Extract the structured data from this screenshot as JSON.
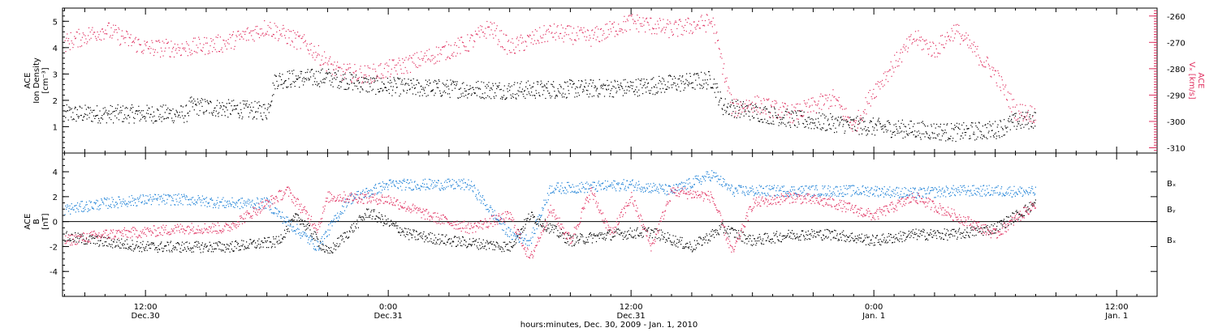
{
  "colors": {
    "black": "#000000",
    "blue": "#1a7fd6",
    "red": "#e03060"
  },
  "x_axis": {
    "title": "hours:minutes, Dec. 30, 2009 - Jan. 1, 2010",
    "ticks": [
      {
        "t": 12,
        "top": "12:00",
        "bottom": "Dec.30"
      },
      {
        "t": 24,
        "top": "0:00",
        "bottom": "Dec.31"
      },
      {
        "t": 36,
        "top": "12:00",
        "bottom": "Dec.31"
      },
      {
        "t": 48,
        "top": "0:00",
        "bottom": "Jan. 1"
      },
      {
        "t": 60,
        "top": "12:00",
        "bottom": "Jan. 1"
      }
    ],
    "range": [
      7.9,
      62.0
    ],
    "unit": "hours since Dec. 30 00:00"
  },
  "chart_data": [
    {
      "type": "scatter",
      "panel": "density-velocity",
      "ylabel": [
        "ACE",
        "Ion Density",
        "[cm⁻³]"
      ],
      "ylim": [
        0,
        5.5
      ],
      "yticks": [
        1,
        2,
        3,
        4,
        5
      ],
      "ylabel_right": [
        "ACE",
        "Vₓ [km/s]"
      ],
      "ylim_right": [
        -312,
        -257
      ],
      "yticks_right": [
        -260,
        -270,
        -280,
        -290,
        -300,
        -310
      ],
      "series": [
        {
          "axis": "left",
          "color": "black",
          "t": [
            8,
            14,
            14.2,
            18,
            18.4,
            21,
            23,
            25,
            30,
            36,
            40,
            40.5,
            44,
            48,
            52,
            54,
            55,
            56
          ],
          "values": [
            1.5,
            1.5,
            1.8,
            1.6,
            2.8,
            2.9,
            2.6,
            2.5,
            2.4,
            2.5,
            2.8,
            1.8,
            1.3,
            1.0,
            0.8,
            0.9,
            1.2,
            1.3
          ]
        },
        {
          "axis": "right",
          "color": "red",
          "t": [
            8,
            10,
            12,
            14,
            16,
            18,
            20,
            21.5,
            23,
            25,
            28,
            29,
            30,
            32,
            34,
            36,
            38,
            40,
            41,
            42,
            44,
            46,
            47,
            48,
            50,
            51,
            52,
            54,
            55,
            56
          ],
          "values": [
            -270,
            -265,
            -272,
            -272,
            -270,
            -264,
            -271,
            -281,
            -282,
            -278,
            -270,
            -264,
            -272,
            -266,
            -268,
            -262,
            -265,
            -262,
            -295,
            -293,
            -297,
            -291,
            -302,
            -288,
            -268,
            -273,
            -265,
            -282,
            -296,
            -297
          ]
        }
      ]
    },
    {
      "type": "scatter",
      "panel": "magnetic-field",
      "ylabel": [
        "ACE",
        "B",
        "[nT]"
      ],
      "ylim": [
        -6,
        5.5
      ],
      "yticks": [
        -4,
        -2,
        0,
        2,
        4
      ],
      "zero_line": true,
      "series": [
        {
          "name": "Bₓ",
          "color": "black",
          "t": [
            8,
            12,
            16,
            18.5,
            19.5,
            21,
            23,
            25,
            27,
            30,
            31,
            33,
            35,
            37,
            39,
            40.5,
            42,
            44,
            46,
            48,
            50,
            52,
            54,
            56
          ],
          "values": [
            -1.2,
            -2.0,
            -2.0,
            -1.6,
            0.5,
            -2.5,
            0.8,
            -1.0,
            -1.5,
            -2.0,
            0.5,
            -1.5,
            -1.0,
            -0.8,
            -2.0,
            -0.5,
            -1.5,
            -1.0,
            -1.0,
            -1.5,
            -1.0,
            -1.0,
            -0.5,
            1.5
          ]
        },
        {
          "name": "Bᵧ",
          "color": "blue",
          "t": [
            8,
            10,
            12,
            14,
            16,
            18,
            19,
            20.5,
            22,
            24,
            26,
            28,
            30,
            31,
            32,
            34,
            36,
            38,
            40,
            41,
            42,
            44,
            46,
            48,
            50,
            52,
            54,
            56
          ],
          "values": [
            1.0,
            1.5,
            1.8,
            1.8,
            1.5,
            1.5,
            0.0,
            -2.0,
            1.8,
            3.0,
            3.0,
            3.0,
            -1.0,
            -1.5,
            2.7,
            2.8,
            3.0,
            2.5,
            3.8,
            2.5,
            2.5,
            2.5,
            2.5,
            2.5,
            2.3,
            2.5,
            2.5,
            2.4
          ]
        },
        {
          "name": "Bₓ",
          "color": "red",
          "t": [
            8,
            10,
            12,
            14,
            16,
            17.5,
            19,
            20.5,
            21,
            22,
            24,
            26,
            28,
            30,
            31,
            32,
            33,
            34,
            35,
            36,
            37,
            38,
            40,
            41,
            42,
            44,
            46,
            48,
            50,
            52,
            54,
            56
          ],
          "values": [
            -1.5,
            -1.0,
            -0.8,
            -0.5,
            -0.5,
            1.0,
            2.5,
            -0.5,
            2.0,
            2.0,
            1.8,
            0.5,
            -0.5,
            0.5,
            -3.0,
            1.0,
            -1.5,
            2.5,
            -1.0,
            2.0,
            -2.0,
            2.5,
            2.0,
            -2.5,
            1.5,
            2.0,
            1.5,
            0.5,
            2.0,
            0.5,
            -1.0,
            1.5
          ]
        }
      ],
      "legend": [
        "Bₓ",
        "Bᵧ",
        "Bₓ"
      ],
      "legend_placement": "right"
    }
  ]
}
